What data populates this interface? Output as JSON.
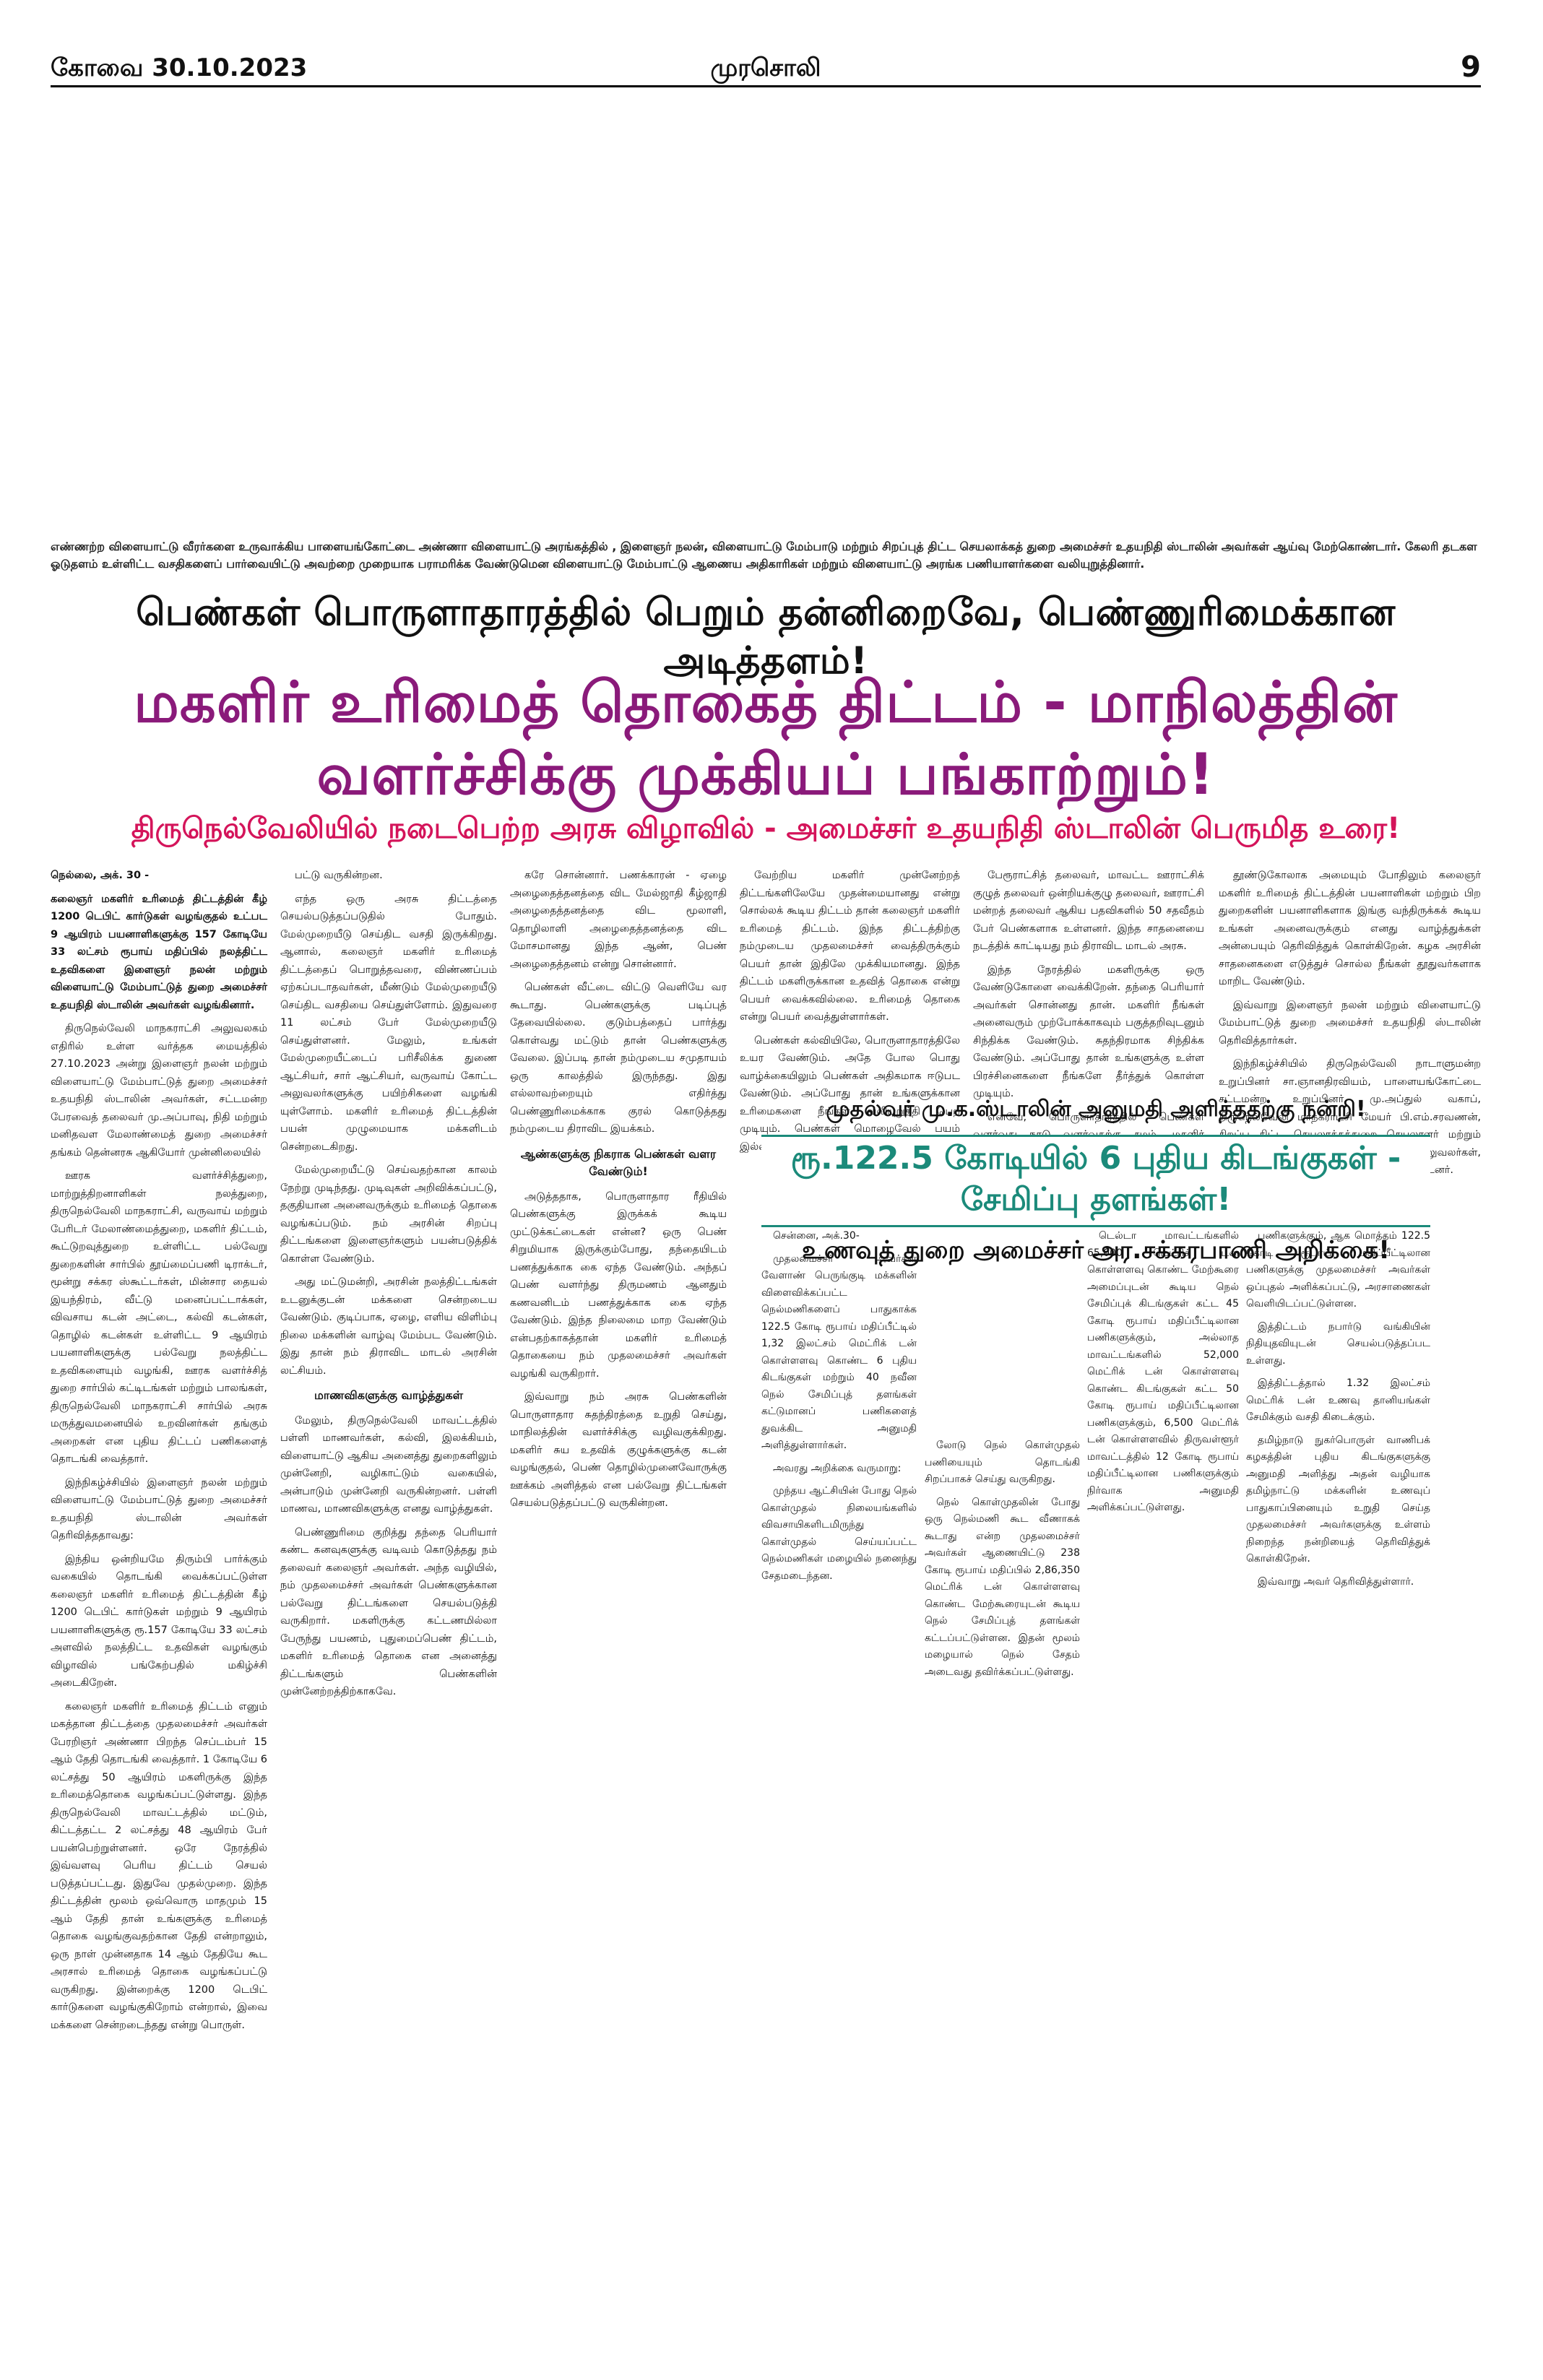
{
  "header": {
    "city_date": "கோவை 30.10.2023",
    "paper_name": "முரசொலி",
    "page_number": "9"
  },
  "photo_caption": "எண்ணற்ற விளையாட்டு வீரர்களை உருவாக்கிய பாளையங்கோட்டை அண்ணா விளையாட்டு அரங்கத்தில் , இளைஞர் நலன், விளையாட்டு மேம்பாடு மற்றும் சிறப்புத் திட்ட செயலாக்கத் துறை அமைச்சர் உதயநிதி ஸ்டாலின் அவர்கள் ஆய்வு மேற்கொண்டார். கேலரி தடகள ஓடுதளம் உள்ளிட்ட வசதிகளைப் பார்வையிட்டு அவற்றை முறையாக பராமரிக்க வேண்டுமென விளையாட்டு மேம்பாட்டு ஆணைய அதிகாரிகள் மற்றும் விளையாட்டு அரங்க பணியாளர்களை வலியுறுத்தினார்.",
  "headline_top": "பெண்கள் பொருளாதாரத்தில் பெறும் தன்னிறைவே, பெண்ணுரிமைக்கான அடித்தளம்!",
  "headline_main": "மகளிர் உரிமைத் தொகைத் திட்டம் - மாநிலத்தின் வளர்ச்சிக்கு முக்கியப் பங்காற்றும்!",
  "headline_sub": "திருநெல்வேலியில் நடைபெற்ற அரசு விழாவில் - அமைச்சர் உதயநிதி ஸ்டாலின் பெருமித உரை!",
  "main_story": {
    "col1": [
      "நெல்லை, அக். 30 -",
      "கலைஞர் மகளிர் உரிமைத் திட்டத்தின் கீழ் 1200 டெபிட் கார்டுகள் வழங்குதல் உட்பட 9 ஆயிரம் பயனாளிகளுக்கு 157 கோடியே 33 லட்சம் ரூபாய் மதிப்பில் நலத்திட்ட உதவிகளை இளைஞர் நலன் மற்றும் விளையாட்டு மேம்பாட்டுத் துறை அமைச்சர் உதயநிதி ஸ்டாலின் அவர்கள் வழங்கினார்.",
      "திருநெல்வேலி மாநகராட்சி அலுவலகம் எதிரில் உள்ள வர்த்தக மையத்தில் 27.10.2023 அன்று இளைஞர் நலன் மற்றும் விளையாட்டு மேம்பாட்டுத் துறை அமைச்சர் உதயநிதி ஸ்டாலின் அவர்கள், சட்டமன்ற பேரவைத் தலைவர் மு.அப்பாவு, நிதி மற்றும் மனிதவள மேலாண்மைத் துறை அமைச்சர் தங்கம் தென்னரசு ஆகியோர் முன்னிலையில்",
      "ஊரக வளர்ச்சித்துறை, மாற்றுத்திறனாளிகள் நலத்துறை, திருநெல்வேலி மாநகராட்சி, வருவாய் மற்றும் பேரிடர் மேலாண்மைத்துறை, மகளிர் திட்டம், கூட்டுறவுத்துறை உள்ளிட்ட பல்வேறு துறைகளின் சார்பில் தூய்மைப்பணி டிராக்டர், மூன்று சக்கர ஸ்கூட்டர்கள், மின்சார தையல் இயந்திரம், வீட்டு மனைப்பட்டாக்கள், விவசாய கடன் அட்டை, கல்வி கடன்கள், தொழில் கடன்கள் உள்ளிட்ட 9 ஆயிரம் பயனாளிகளுக்கு பல்வேறு நலத்திட்ட உதவிகளையும் வழங்கி, ஊரக வளர்ச்சித் துறை சார்பில் கட்டிடங்கள் மற்றும் பாலங்கள், திருநெல்வேலி மாநகராட்சி சார்பில் அரசு மருத்துவமனையில் உறவினர்கள் தங்கும் அறைகள் என புதிய திட்டப் பணிகளைத் தொடங்கி வைத்தார்.",
      "இந்நிகழ்ச்சியில் இளைஞர் நலன் மற்றும் விளையாட்டு மேம்பாட்டுத் துறை அமைச்சர் உதயநிதி ஸ்டாலின் அவர்கள் தெரிவித்ததாவது:",
      "இந்திய ஒன்றியமே திரும்பி பார்க்கும் வகையில் தொடங்கி வைக்கப்பட்டுள்ள கலைஞர் மகளிர் உரிமைத் திட்டத்தின் கீழ் 1200 டெபிட் கார்டுகள் மற்றும் 9 ஆயிரம் பயனாளிகளுக்கு ரூ.157 கோடியே 33 லட்சம் அளவில் நலத்திட்ட உதவிகள் வழங்கும் விழாவில் பங்கேற்பதில் மகிழ்ச்சி அடைகிறேன்.",
      "கலைஞர் மகளிர் உரிமைத் திட்டம் எனும் மகத்தான திட்டத்தை முதலமைச்சர் அவர்கள் பேரறிஞர் அண்ணா பிறந்த செப்டம்பர் 15 ஆம் தேதி தொடங்கி வைத்தார். 1 கோடியே 6 லட்சத்து 50 ஆயிரம் மகளிருக்கு இந்த உரிமைத்தொகை வழங்கப்பட்டுள்ளது. இந்த திருநெல்வேலி மாவட்டத்தில் மட்டும், கிட்டத்தட்ட 2 லட்சத்து 48 ஆயிரம் பேர் பயன்பெற்றுள்ளனர். ஒரே நேரத்தில் இவ்வளவு பெரிய திட்டம் செயல் படுத்தப்பட்டது. இதுவே முதல்முறை. இந்த திட்டத்தின் மூலம் ஒவ்வொரு மாதமும் 15 ஆம் தேதி தான் உங்களுக்கு உரிமைத் தொகை வழங்குவதற்கான தேதி என்றாலும், ஒரு நாள் முன்னதாக 14 ஆம் தேதியே கூட அரசால் உரிமைத் தொகை வழங்கப்பட்டு வருகிறது. இன்றைக்கு 1200 டெபிட் கார்டுகளை வழங்குகிறோம் என்றால், இவை மக்களை சென்றடைந்தது என்று பொருள்."
    ],
    "col2": [
      "பட்டு வருகின்றன.",
      "எந்த ஒரு அரசு திட்டத்தை செயல்படுத்தப்படுதில் போதும். மேல்முறையீடு செய்திட வசதி இருக்கிறது. ஆனால், கலைஞர் மகளிர் உரிமைத் திட்டத்தைப் பொறுத்தவரை, விண்ணப்பம் ஏற்கப்படாதவர்கள், மீண்டும் மேல்முறையீடு செய்திட வசதியை செய்துள்ளோம். இதுவரை 11 லட்சம் பேர் மேல்முறையீடு செய்துள்ளனர். மேலும், உங்கள் மேல்முறையீட்டைப் பரிசீலிக்க துணை ஆட்சியர், சார் ஆட்சியர், வருவாய் கோட்ட அலுவலர்களுக்கு பயிற்சிகளை வழங்கி யுள்ளோம். மகளிர் உரிமைத் திட்டத்தின் பயன் முழுமையாக மக்களிடம் சென்றடைகிறது.",
      "மேல்முறையீட்டு செய்வதற்கான காலம் நேற்று முடிந்தது. முடிவுகள் அறிவிக்கப்பட்டு, தகுதியான அனைவருக்கும் உரிமைத் தொகை வழங்கப்படும். நம் அரசின் சிறப்பு திட்டங்களை இளைஞர்களும் பயன்படுத்திக் கொள்ள வேண்டும்.",
      "அது மட்டுமன்றி, அரசின் நலத்திட்டங்கள் உடனுக்குடன் மக்களை சென்றடைய வேண்டும். குடிப்பாக, ஏழை, எளிய விளிம்பு நிலை மக்களின் வாழ்வு மேம்பட வேண்டும். இது தான் நம் திராவிட மாடல் அரசின் லட்சியம்.",
      "மாணவிகளுக்கு வாழ்த்துகள்",
      "மேலும், திருநெல்வேலி மாவட்டத்தில் பள்ளி மாணவர்கள், கல்வி, இலக்கியம், விளையாட்டு ஆகிய அனைத்து துறைகளிலும் முன்னேறி, வழிகாட்டும் வகையில், அன்பாடும் முன்னேறி வருகின்றனர். பள்ளி மாணவ, மாணவிகளுக்கு எனது வாழ்த்துகள்.",
      "பெண்ணுரிமை குறித்து தந்தை பெரியார் கண்ட கனவுகளுக்கு வடிவம் கொடுத்தது நம் தலைவர் கலைஞர் அவர்கள். அந்த வழியில், நம் முதலமைச்சர் அவர்கள் பெண்களுக்கான பல்வேறு திட்டங்களை செயல்படுத்தி வருகிறார். மகளிருக்கு கட்டணமில்லா பேருந்து பயணம், புதுமைப்பெண் திட்டம், மகளிர் உரிமைத் தொகை என அனைத்து திட்டங்களும் பெண்களின் முன்னேற்றத்திற்காகவே."
    ],
    "col3": [
      "கரே சொன்னார். பணக்காரன் - ஏழை அழைதைத்தனத்தை விட மேல்ஜாதி கீழ்ஜாதி அழைதைத்தனத்தை விட மூலாளி, தொழிலாளி அழைதைத்தனத்தை விட மோசமானது இந்த ஆண், பெண் அழைதைத்தனம் என்று சொன்னார்.",
      "பெண்கள் வீட்டை விட்டு வெளியே வர கூடாது. பெண்களுக்கு படிப்புத் தேவையில்லை. குடும்பத்தைப் பார்த்து கொள்வது மட்டும் தான் பெண்களுக்கு வேலை. இப்படி தான் நம்முடைய சமுதாயம் ஒரு காலத்தில் இருந்தது. இது எல்லாவற்றையும் எதிர்த்து பெண்ணுரிமைக்காக குரல் கொடுத்தது நம்முடைய திராவிட இயக்கம்.",
      "ஆண்களுக்கு நிகராக பெண்கள் வளர வேண்டும்!",
      "அடுத்ததாக, பொருளாதார ரீதியில் பெண்களுக்கு இருக்கக் கூடிய முட்டுக்கட்டைகள் என்ன? ஒரு பெண் சிறுமியாக இருக்கும்போது, தந்தையிடம் பணத்துக்காக கை ஏந்த வேண்டும். அந்தப் பெண் வளர்ந்து திருமணம் ஆனதும் கணவனிடம் பணத்துக்காக கை ஏந்த வேண்டும். இந்த நிலைமை மாற வேண்டும் என்பதற்காகத்தான் மகளிர் உரிமைத் தொகையை நம் முதலமைச்சர் அவர்கள் வழங்கி வருகிறார்.",
      "இவ்வாறு நம் அரசு பெண்களின் பொருளாதார சுதந்திரத்தை உறுதி செய்து, மாநிலத்தின் வளர்ச்சிக்கு வழிவகுக்கிறது. மகளிர் சுய உதவிக் குழுக்களுக்கு கடன் வழங்குதல், பெண் தொழில்முனைவோருக்கு ஊக்கம் அளித்தல் என பல்வேறு திட்டங்கள் செயல்படுத்தப்பட்டு வருகின்றன."
    ],
    "col4": [
      "வேற்றிய மகளிர் முன்னேற்றத் திட்டங்களிலேயே முதன்மையானது என்று சொல்லக் கூடிய திட்டம் தான் கலைஞர் மகளிர் உரிமைத் திட்டம். இந்த திட்டத்திற்கு நம்முடைய முதலமைச்சர் வைத்திருக்கும் பெயர் தான் இதிலே முக்கியமானது. இந்த திட்டம் மகளிருக்கான உதவித் தொகை என்று பெயர் வைக்கவில்லை. உரிமைத் தொகை என்று பெயர் வைத்துள்ளார்கள்.",
      "பெண்கள் கல்வியிலே, பொருளாதாரத்திலே உயர வேண்டும். அதே போல பொது வாழ்க்கையிலும் பெண்கள் அதிகமாக ஈடுபட வேண்டும். அப்போது தான் உங்களுக்கான உரிமைகளை நீங்கள் வலியுறுத்தி பெற முடியும். பெண்கள் மொழைவேல் பயம் இல்லாமல் முன்னேற வேண்டும்."
    ],
    "col5": [
      "பேரூராட்சித் தலைவர், மாவட்ட ஊராட்சிக் குழுத் தலைவர் ஒன்றியக்குழு தலைவர், ஊராட்சி மன்றத் தலைவர் ஆகிய பதவிகளில் 50 சதவீதம் பேர் பெண்களாக உள்ளனர். இந்த சாதனையை நடத்திக் காட்டியது நம் திராவிட மாடல் அரசு.",
      "இந்த நேரத்தில் மகளிருக்கு ஒரு வேண்டுகோளை வைக்கிறேன். தந்தை பெரியார் அவர்கள் சொன்னது தான். மகளிர் நீங்கள் அனைவரும் முற்போக்காகவும் பகுத்தறிவுடனும் சிந்திக்க வேண்டும். சுதந்திரமாக சிந்திக்க வேண்டும். அப்போது தான் உங்களுக்கு உள்ள பிரச்சினைகளை நீங்களே தீர்த்துக் கொள்ள முடியும்.",
      "எனவே, பொருளாதாரத்தில் பெண்கள் வளர்வது நாடு வளர்வதற்கு சமம். மகளிர் உரிமைத் தொகையை பெற்றுக் கொண்டு, ஒவ்வொருவரும் தங்கள் வாழ்வில் முன்னேற்றம் காண வேண்டும்."
    ],
    "col6": [
      "தூண்டுகோலாக அமையும் போதிலும் கலைஞர் மகளிர் உரிமைத் திட்டத்தின் பயனாளிகள் மற்றும் பிற துறைகளின் பயனாளிகளாக இங்கு வந்திருக்கக் கூடிய உங்கள் அனைவருக்கும் எனது வாழ்த்துக்கள் அன்பையும் தெரிவித்துக் கொள்கிறேன். கழக அரசின் சாதனைகளை எடுத்துச் சொல்ல நீங்கள் தூதுவர்களாக மாறிட வேண்டும்.",
      "இவ்வாறு இளைஞர் நலன் மற்றும் விளையாட்டு மேம்பாட்டுத் துறை அமைச்சர் உதயநிதி ஸ்டாலின் தெரிவித்தார்கள்.",
      "இந்நிகழ்ச்சியில் திருநெல்வேலி நாடாளுமன்ற உறுப்பினர் சா.ஞானதிரவியம், பாளையங்கோட்டை சட்டமன்ற உறுப்பினர் மு.அப்துல் வகாப், திருநெல்வேலி மாநகராட்சி மேயர் பி.எம்.சரவணன், சிறப்பு திட்ட செயலாக்கத்துறை செயலாளர் மற்றும் மாவட்ட ஆட்சித் தலைவர் மற்றும் அரசு அலுவலர்கள், பயனாளிகள் உள்ளிட்ட பலர் கலந்து கொண்டனர்."
    ]
  },
  "box": {
    "thanks": "முதல்வர் மு.க.ஸ்டாலின் அனுமதி அளித்ததற்கு நன்றி!",
    "headline": "ரூ.122.5 கோடியில் 6 புதிய கிடங்குகள் - சேமிப்பு தளங்கள்!",
    "subhead": "உணவுத் துறை அமைச்சர் அர.சக்கரபாணி அறிக்கை!"
  },
  "story2": {
    "s1": [
      "சென்னை, அக்.30-",
      "முதலமைச்சர் அவர்கள் வேளாண் பெருங்குடி மக்களின் விளைவிக்கப்பட்ட நெல்மணிகளைப் பாதுகாக்க 122.5 கோடி ரூபாய் மதிப்பீட்டில் 1,32 இலட்சம் மெட்ரிக் டன் கொள்ளளவு கொண்ட 6 புதிய கிடங்குகள் மற்றும் 40 நவீன நெல் சேமிப்புத் தளங்கள் கட்டுமானப் பணிகளைத் துவக்கிட அனுமதி அளித்துள்ளார்கள்.",
      "அவரது அறிக்கை வருமாறு:",
      "முந்தய ஆட்சியின் போது நெல் கொள்முதல் நிலையங்களில் விவசாயிகளிடமிருந்து கொள்முதல் செய்யப்பட்ட நெல்மணிகள் மழையில் நனைந்து சேதமடைந்தன."
    ],
    "s2": [
      "லோடு நெல் கொள்முதல் பணியையும் தொடங்கி சிறப்பாகச் செய்து வருகிறது.",
      "நெல் கொள்முதலின் போது ஒரு நெல்மணி கூட வீணாகக் கூடாது என்ற முதலமைச்சர் அவர்கள் ஆணையிட்டு 238 கோடி ரூபாய் மதிப்பில் 2,86,350 மெட்ரிக் டன் கொள்ளளவு கொண்ட மேற்கூரையுடன் கூடிய நெல் சேமிப்புத் தளங்கள் கட்டப்பட்டுள்ளன. இதன் மூலம் மழையால் நெல் சேதம் அடைவது தவிர்க்கப்பட்டுள்ளது."
    ],
    "s3": [
      "டெல்டா மாவட்டங்களில் 65,000 மெட்ரிக் டன் கொள்ளளவு கொண்ட மேற்கூரை அமைப்புடன் கூடிய நெல் சேமிப்புக் கிடங்குகள் கட்ட 45 கோடி ரூபாய் மதிப்பீட்டிலான பணிகளுக்கும், அல்லாத மாவட்டங்களில் 52,000 மெட்ரிக் டன் கொள்ளளவு கொண்ட கிடங்குகள் கட்ட 50 கோடி ரூபாய் மதிப்பீட்டிலான பணிகளுக்கும், 6,500 மெட்ரிக் டன் கொள்ளளவில் திருவள்ளூர் மாவட்டத்தில் 12 கோடி ரூபாய் மதிப்பீட்டிலான பணிகளுக்கும் நிர்வாக அனுமதி அளிக்கப்பட்டுள்ளது."
    ],
    "s4": [
      "பணிகளுக்கும், ஆக மொத்தம் 122.5 கோடி ரூபாய் மதிப்பீட்டிலான பணிகளுக்கு முதலமைச்சர் அவர்கள் ஒப்புதல் அளிக்கப்பட்டு, அரசாணைகள் வெளியிடப்பட்டுள்ளன.",
      "இத்திட்டம் நபார்டு வங்கியின் நிதியுதவியுடன் செயல்படுத்தப்பட உள்ளது.",
      "இத்திட்டத்தால் 1.32 இலட்சம் மெட்ரிக் டன் உணவு தானியங்கள் சேமிக்கும் வசதி கிடைக்கும்.",
      "தமிழ்நாடு நுகர்பொருள் வாணிபக் கழகத்தின் புதிய கிடங்குகளுக்கு அனுமதி அளித்து அதன் வழியாக தமிழ்நாட்டு மக்களின் உணவுப் பாதுகாப்பினையும் உறுதி செய்த முதலமைச்சர் அவர்களுக்கு உள்ளம் நிறைந்த நன்றியைத் தெரிவித்துக் கொள்கிறேன்.",
      "இவ்வாறு அவர் தெரிவித்துள்ளார்."
    ]
  }
}
